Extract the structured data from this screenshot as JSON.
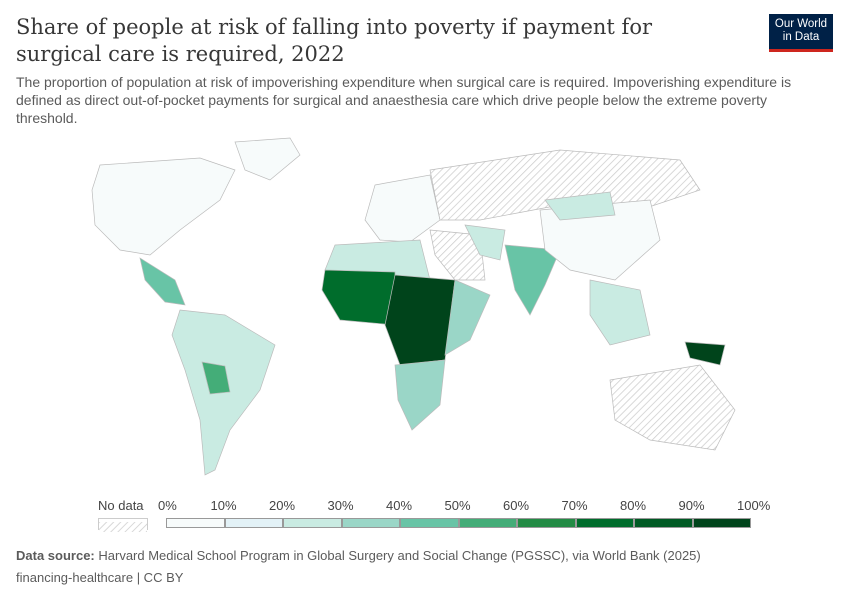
{
  "header": {
    "title": "Share of people at risk of falling into poverty if payment for surgical care is required, 2022",
    "subtitle": "The proportion of population at risk of impoverishing expenditure when surgical care is required. Impoverishing expenditure is defined as direct out-of-pocket payments for surgical and anaesthesia care which drive people below the extreme poverty threshold.",
    "logo": "Our World in Data"
  },
  "chart_data": {
    "type": "choropleth-map",
    "year": "2022",
    "legend": {
      "no_data_label": "No data",
      "ticks": [
        "0%",
        "10%",
        "20%",
        "30%",
        "40%",
        "50%",
        "60%",
        "70%",
        "80%",
        "90%",
        "100%"
      ],
      "colors": [
        "#f7fbfb",
        "#e3f2f7",
        "#c9ebe2",
        "#9ad6c7",
        "#68c4a6",
        "#44ad78",
        "#238b45",
        "#006d2c",
        "#005a24",
        "#00441b"
      ]
    },
    "regions": [
      {
        "name": "North America",
        "bin": 0
      },
      {
        "name": "Greenland",
        "bin": 0
      },
      {
        "name": "Central America",
        "bin": 4
      },
      {
        "name": "South America",
        "bin": 2
      },
      {
        "name": "Bolivia",
        "bin": 5
      },
      {
        "name": "Europe",
        "bin": 0
      },
      {
        "name": "Russia",
        "bin": -1
      },
      {
        "name": "North Africa",
        "bin": 2
      },
      {
        "name": "West Africa",
        "bin": 7
      },
      {
        "name": "Central Africa",
        "bin": 9
      },
      {
        "name": "East Africa",
        "bin": 3
      },
      {
        "name": "Southern Africa",
        "bin": 3
      },
      {
        "name": "Middle East",
        "bin": -1
      },
      {
        "name": "Iran",
        "bin": 2
      },
      {
        "name": "India",
        "bin": 4
      },
      {
        "name": "China",
        "bin": 0
      },
      {
        "name": "Mongolia",
        "bin": 2
      },
      {
        "name": "Southeast Asia",
        "bin": 2
      },
      {
        "name": "Papua New Guinea",
        "bin": 9
      },
      {
        "name": "Australia",
        "bin": -1
      }
    ]
  },
  "footer": {
    "source_label": "Data source:",
    "source": "Harvard Medical School Program in Global Surgery and Social Change (PGSSC), via World Bank (2025)",
    "line2": "financing-healthcare | CC BY"
  }
}
